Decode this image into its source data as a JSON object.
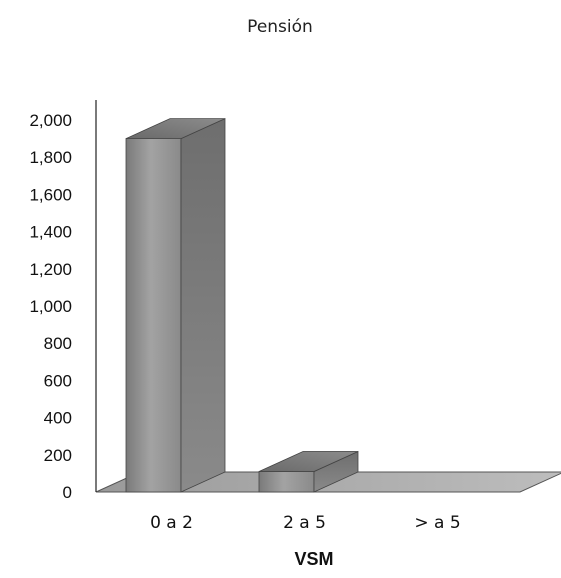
{
  "chart_data": {
    "type": "bar",
    "title": "Pensión",
    "xlabel": "VSM",
    "ylabel": "",
    "categories": [
      "0 a 2",
      "2 a 5",
      "> a 5"
    ],
    "values": [
      1900,
      110,
      0
    ],
    "ylim": [
      0,
      2000
    ],
    "yticks": [
      "0",
      "200",
      "400",
      "600",
      "800",
      "1,000",
      "1,200",
      "1,400",
      "1,600",
      "1,800",
      "2,000"
    ],
    "style": "3d",
    "grid": false,
    "legend": false,
    "colors": {
      "bar_front": "#8c8c8c",
      "bar_top": "#6f6f6f",
      "bar_side": "#5e5e5e",
      "floor": "#9a9a9a"
    }
  }
}
